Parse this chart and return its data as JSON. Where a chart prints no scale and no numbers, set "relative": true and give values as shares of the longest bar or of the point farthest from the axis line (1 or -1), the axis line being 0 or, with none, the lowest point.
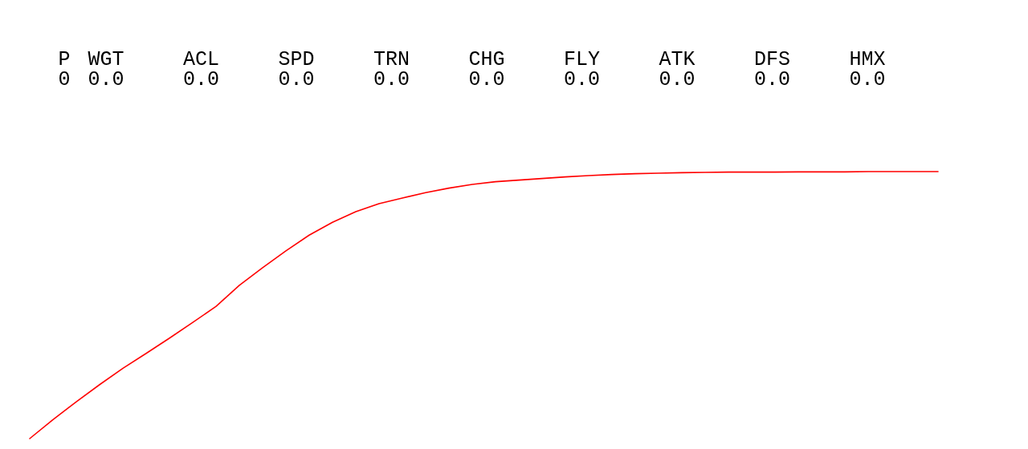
{
  "chart_data": {
    "type": "line",
    "relative": true,
    "categories": [
      null,
      null,
      null,
      null,
      null,
      null,
      null,
      null,
      null,
      null,
      null,
      null,
      null,
      null,
      null,
      null,
      null,
      null,
      null,
      null,
      null,
      null,
      null,
      null,
      null,
      null,
      null,
      null,
      null,
      null,
      null,
      null,
      null,
      null,
      null,
      null,
      null,
      null,
      null,
      null
    ],
    "values": [
      0,
      0.071,
      0.138,
      0.202,
      0.263,
      0.319,
      0.376,
      0.435,
      0.495,
      0.574,
      0.64,
      0.703,
      0.762,
      0.81,
      0.85,
      0.88,
      0.901,
      0.921,
      0.938,
      0.952,
      0.962,
      0.968,
      0.974,
      0.98,
      0.985,
      0.989,
      0.992,
      0.994,
      0.996,
      0.997,
      0.998,
      0.998,
      0.998,
      0.999,
      0.999,
      0.999,
      1,
      1,
      1,
      1
    ],
    "color": "#ff0000",
    "annotations": [
      "P",
      "0",
      "WGT",
      "0.0",
      "ACL",
      "0.0",
      "SPD",
      "0.0",
      "TRN",
      "0.0",
      "CHG",
      "0.0",
      "FLY",
      "0.0",
      "ATK",
      "0.0",
      "DFS",
      "0.0",
      "HMX",
      "0.0"
    ]
  }
}
